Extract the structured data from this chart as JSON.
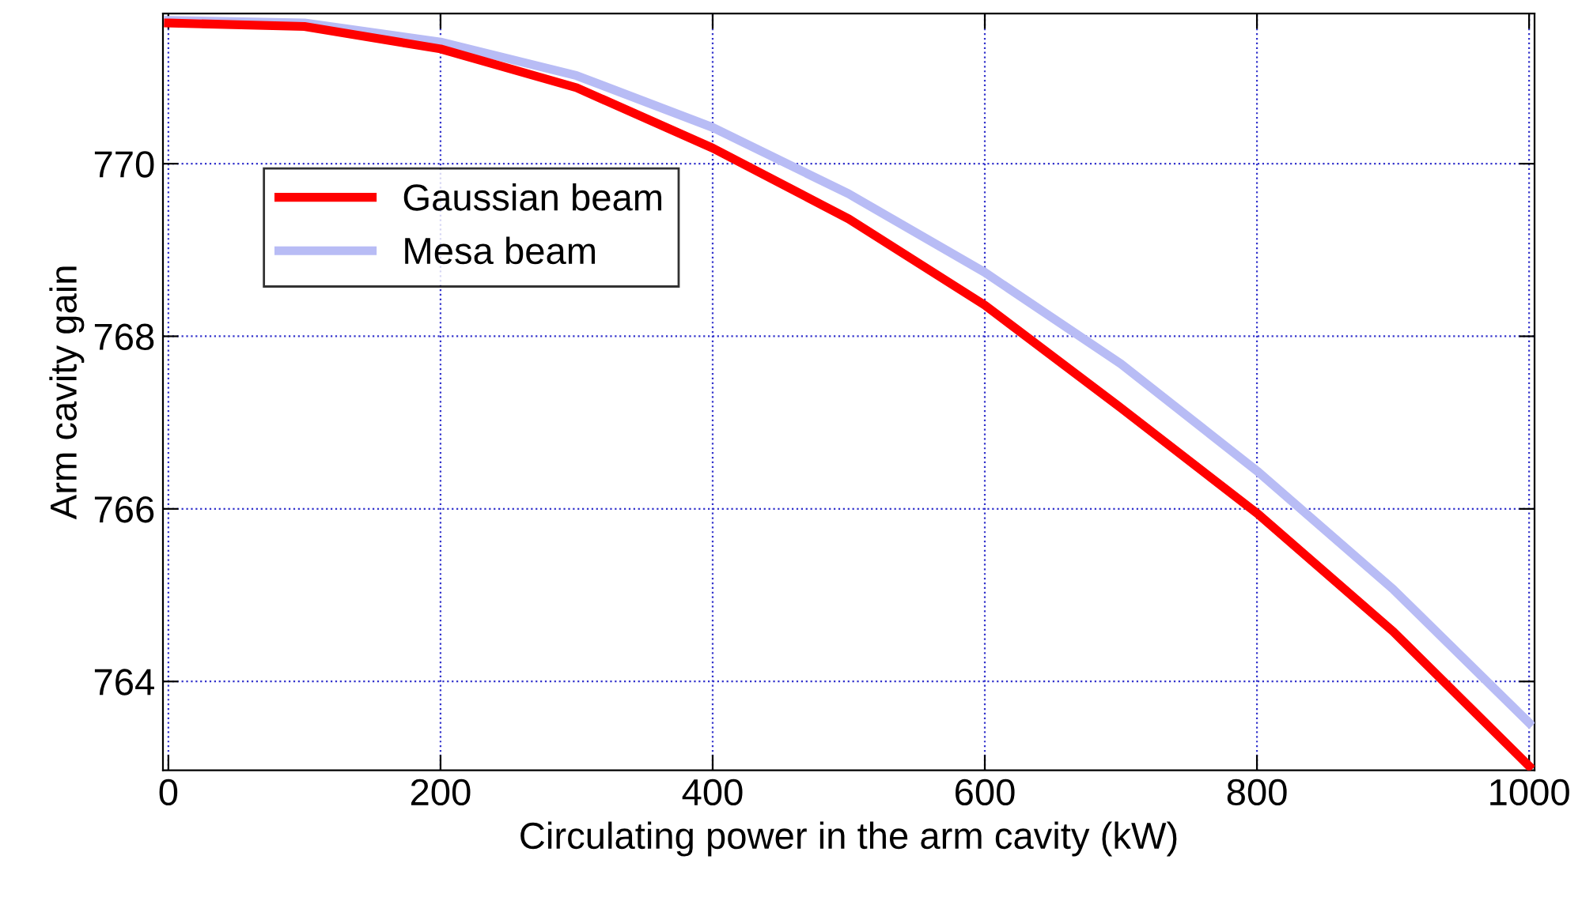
{
  "chart_data": {
    "type": "line",
    "xlabel": "Circulating power in the arm cavity (kW)",
    "ylabel": "Arm cavity gain",
    "x": [
      0,
      100,
      200,
      300,
      400,
      500,
      600,
      700,
      800,
      900,
      1000
    ],
    "series": [
      {
        "name": "Gaussian beam",
        "color": "#ff0000",
        "values": [
          771.63,
          771.59,
          771.33,
          770.88,
          770.18,
          769.36,
          768.36,
          767.17,
          765.95,
          764.58,
          763.02
        ]
      },
      {
        "name": "Mesa beam",
        "color": "#b8bcf5",
        "values": [
          771.66,
          771.63,
          771.41,
          771.02,
          770.42,
          769.65,
          768.74,
          767.68,
          766.44,
          765.07,
          763.52
        ]
      }
    ],
    "xlim": [
      -4,
      1004
    ],
    "xticks": [
      0,
      200,
      400,
      600,
      800,
      1000
    ],
    "ylim": [
      762.97,
      771.74
    ],
    "yticks": [
      764,
      766,
      768,
      770
    ],
    "grid": true,
    "legend": "top left",
    "marker": "none",
    "line_style": "solid"
  }
}
